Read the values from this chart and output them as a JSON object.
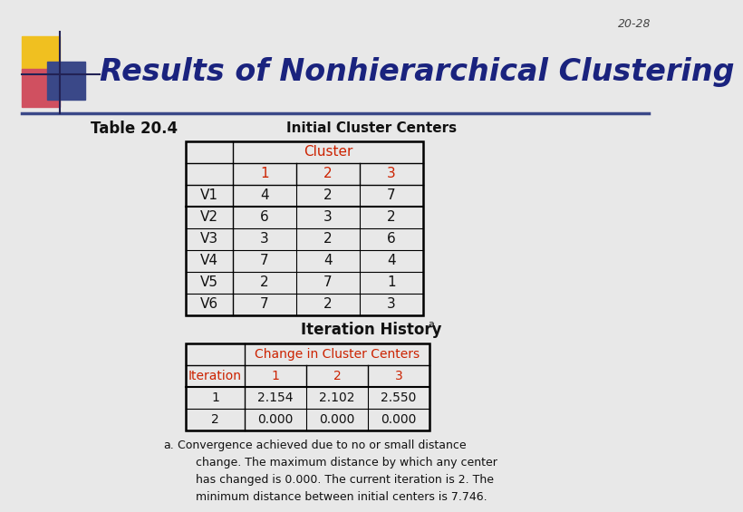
{
  "slide_number": "20-28",
  "title": "Results of Nonhierarchical Clustering",
  "table1_title": "Initial Cluster Centers",
  "table1_label": "Table 20.4",
  "table2_title": "Iteration History",
  "table2_title_super": "a",
  "cluster_header": "Cluster",
  "cluster_cols": [
    "1",
    "2",
    "3"
  ],
  "row_labels": [
    "V1",
    "V2",
    "V3",
    "V4",
    "V5",
    "V6"
  ],
  "table1_data": [
    [
      4,
      2,
      7
    ],
    [
      6,
      3,
      2
    ],
    [
      3,
      2,
      6
    ],
    [
      7,
      4,
      4
    ],
    [
      2,
      7,
      1
    ],
    [
      7,
      2,
      3
    ]
  ],
  "change_header": "Change in Cluster Centers",
  "iter_col_header": "Iteration",
  "iter_cols": [
    "1",
    "2",
    "3"
  ],
  "iter_labels": [
    "1",
    "2"
  ],
  "table2_data": [
    [
      "2.154",
      "2.102",
      "2.550"
    ],
    [
      "0.000",
      "0.000",
      "0.000"
    ]
  ],
  "footnote_a": "a.",
  "footnote_text": " Convergence achieved due to no or small distance\n      change. The maximum distance by which any center\n      has changed is 0.000. The current iteration is 2. The\n      minimum distance between initial centers is 7.746.",
  "bg_color": "#e8e8e8",
  "title_color": "#1a237e",
  "red_color": "#cc2200",
  "body_bg": "#e8e8e8",
  "slide_num_color": "#444444",
  "header_area_bg": "#e8e8e8",
  "table_bg": "#e8e8e8"
}
